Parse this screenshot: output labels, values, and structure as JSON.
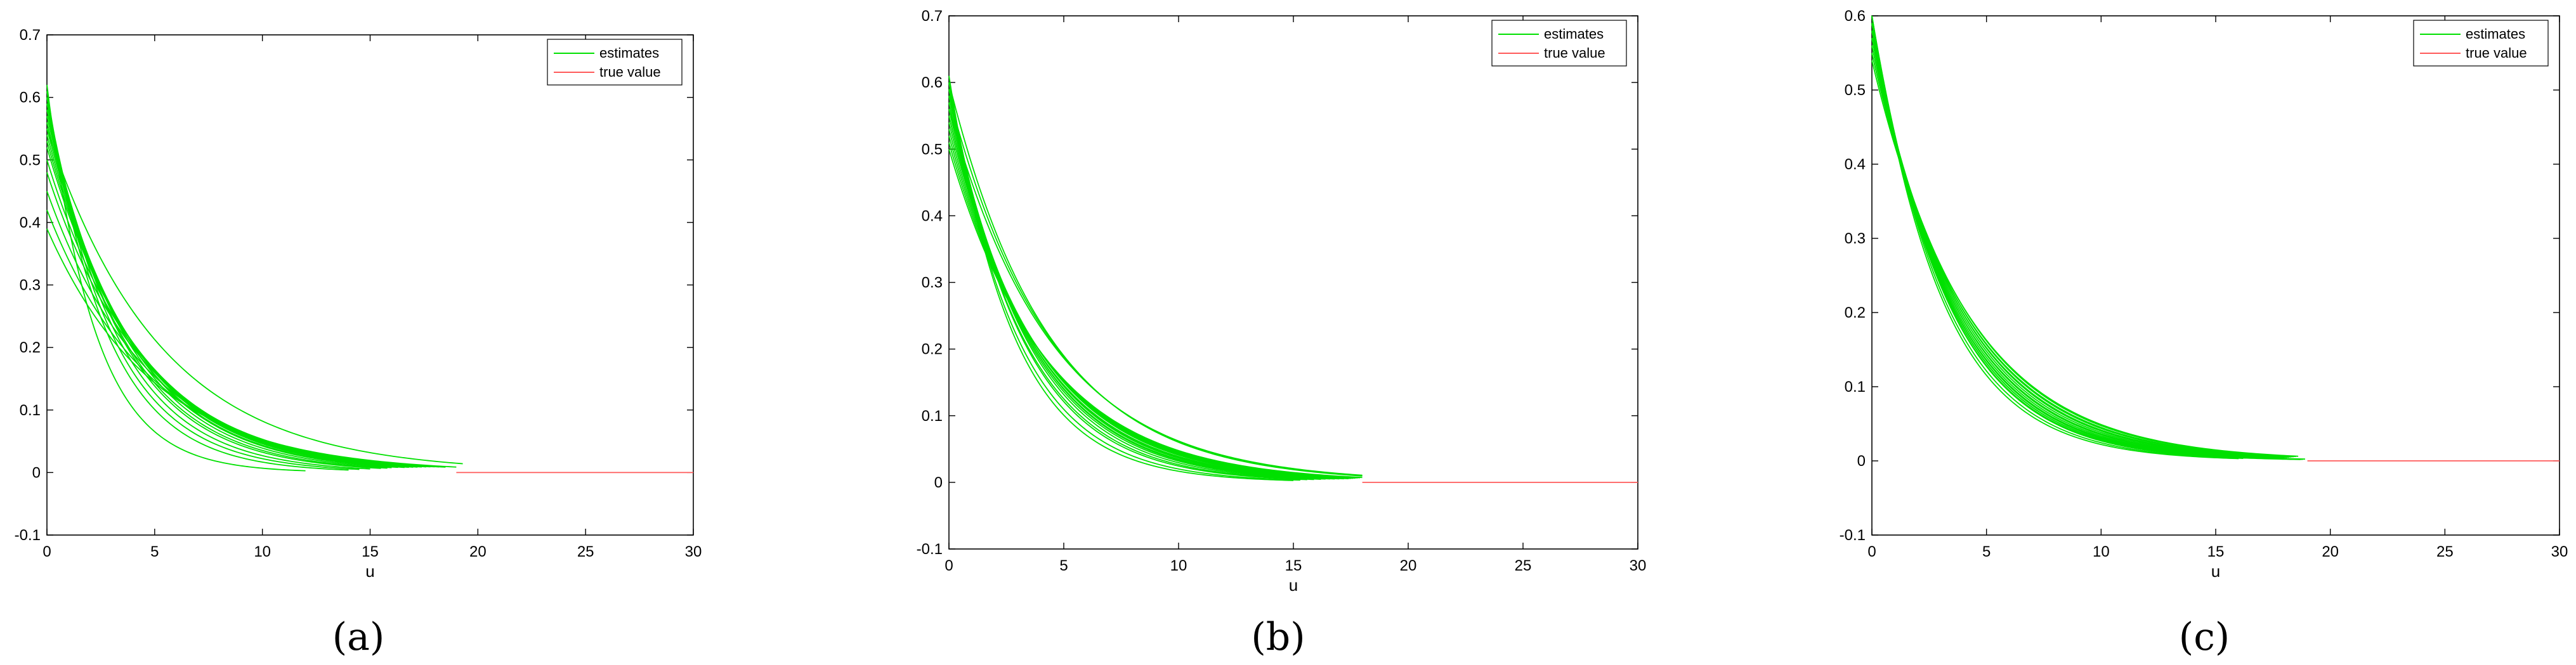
{
  "chart_data": [
    {
      "type": "line",
      "caption": "(a)",
      "xlabel": "u",
      "ylabel": "",
      "xlim": [
        0,
        30
      ],
      "ylim": [
        -0.1,
        0.7
      ],
      "xticks": [
        "0",
        "5",
        "10",
        "15",
        "20",
        "25",
        "30"
      ],
      "yticks": [
        "-0.1",
        "0",
        "0.1",
        "0.2",
        "0.3",
        "0.4",
        "0.5",
        "0.6",
        "0.7"
      ],
      "grid": false,
      "legend": "top-right",
      "series": [
        {
          "name": "estimates",
          "color": "#00e000",
          "curve": "exponential-decay",
          "start_values": [
            0.62,
            0.61,
            0.6,
            0.6,
            0.59,
            0.58,
            0.58,
            0.57,
            0.56,
            0.56,
            0.55,
            0.54,
            0.53,
            0.52,
            0.5,
            0.48,
            0.45,
            0.42,
            0.39,
            0.55
          ],
          "decay_rates": [
            0.45,
            0.36,
            0.33,
            0.31,
            0.29,
            0.28,
            0.27,
            0.26,
            0.255,
            0.25,
            0.245,
            0.24,
            0.235,
            0.23,
            0.225,
            0.22,
            0.215,
            0.21,
            0.2,
            0.19
          ],
          "x_end": [
            12.0,
            14.0,
            14.5,
            15.0,
            15.5,
            15.8,
            16.0,
            16.3,
            16.6,
            16.8,
            17.0,
            17.2,
            17.4,
            17.6,
            17.8,
            18.0,
            18.2,
            18.5,
            19.0,
            19.3
          ]
        },
        {
          "name": "true value",
          "color": "#ff5a5a",
          "x": [
            19,
            30
          ],
          "y": [
            0,
            0
          ]
        }
      ]
    },
    {
      "type": "line",
      "caption": "(b)",
      "xlabel": "u",
      "ylabel": "",
      "xlim": [
        0,
        30
      ],
      "ylim": [
        -0.1,
        0.7
      ],
      "xticks": [
        "0",
        "5",
        "10",
        "15",
        "20",
        "25",
        "30"
      ],
      "yticks": [
        "-0.1",
        "0",
        "0.1",
        "0.2",
        "0.3",
        "0.4",
        "0.5",
        "0.6",
        "0.7"
      ],
      "grid": false,
      "legend": "top-right",
      "series": [
        {
          "name": "estimates",
          "color": "#00e000",
          "curve": "exponential-decay",
          "start_values": [
            0.61,
            0.6,
            0.6,
            0.59,
            0.59,
            0.58,
            0.58,
            0.57,
            0.57,
            0.56,
            0.55,
            0.55,
            0.54,
            0.53,
            0.52,
            0.51,
            0.5,
            0.6,
            0.58,
            0.56
          ],
          "decay_rates": [
            0.36,
            0.34,
            0.32,
            0.31,
            0.3,
            0.29,
            0.285,
            0.28,
            0.275,
            0.27,
            0.265,
            0.26,
            0.255,
            0.25,
            0.245,
            0.24,
            0.235,
            0.23,
            0.225,
            0.22
          ],
          "x_end": [
            15.0,
            15.3,
            15.6,
            15.9,
            16.2,
            16.4,
            16.6,
            16.8,
            17.0,
            17.2,
            17.4,
            17.5,
            17.6,
            17.7,
            17.8,
            17.9,
            18.0,
            18.0,
            18.0,
            18.0
          ]
        },
        {
          "name": "true value",
          "color": "#ff5a5a",
          "x": [
            18,
            30
          ],
          "y": [
            0,
            0
          ]
        }
      ]
    },
    {
      "type": "line",
      "caption": "(c)",
      "xlabel": "u",
      "ylabel": "",
      "xlim": [
        0,
        30
      ],
      "ylim": [
        -0.1,
        0.6
      ],
      "xticks": [
        "0",
        "5",
        "10",
        "15",
        "20",
        "25",
        "30"
      ],
      "yticks": [
        "-0.1",
        "0",
        "0.1",
        "0.2",
        "0.3",
        "0.4",
        "0.5",
        "0.6"
      ],
      "grid": false,
      "legend": "top-right",
      "series": [
        {
          "name": "estimates",
          "color": "#00e000",
          "curve": "exponential-decay",
          "start_values": [
            0.6,
            0.6,
            0.6,
            0.59,
            0.59,
            0.59,
            0.58,
            0.58,
            0.58,
            0.57,
            0.57,
            0.57,
            0.56,
            0.56,
            0.55,
            0.55,
            0.54,
            0.6,
            0.59,
            0.58
          ],
          "decay_rates": [
            0.33,
            0.32,
            0.31,
            0.305,
            0.3,
            0.295,
            0.29,
            0.285,
            0.28,
            0.275,
            0.27,
            0.265,
            0.26,
            0.255,
            0.25,
            0.245,
            0.24,
            0.31,
            0.3,
            0.29
          ],
          "x_end": [
            16.0,
            16.2,
            16.4,
            16.6,
            16.8,
            17.0,
            17.2,
            17.4,
            17.6,
            17.8,
            18.0,
            18.1,
            18.2,
            18.3,
            18.4,
            18.5,
            18.6,
            18.7,
            18.8,
            18.9
          ]
        },
        {
          "name": "true value",
          "color": "#ff5a5a",
          "x": [
            19,
            30
          ],
          "y": [
            0,
            0
          ]
        }
      ]
    }
  ]
}
